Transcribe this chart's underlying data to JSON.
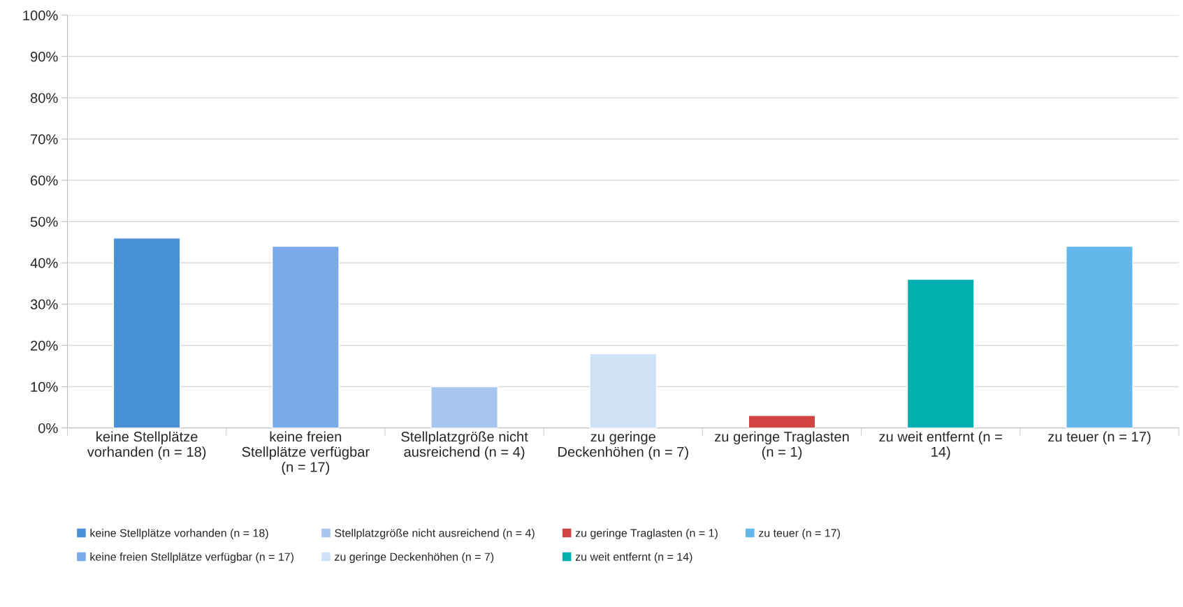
{
  "chart_data": {
    "type": "bar",
    "categories": [
      "keine Stellplätze vorhanden (n = 18)",
      "keine freien Stellplätze verfügbar (n = 17)",
      "Stellplatzgröße nicht ausreichend (n = 4)",
      "zu geringe Deckenhöhen (n = 7)",
      "zu geringe Traglasten (n = 1)",
      "zu weit entfernt (n = 14)",
      "zu teuer (n = 17)"
    ],
    "series": [
      {
        "name": "keine Stellplätze vorhanden (n = 18)",
        "color": "#4a90d9",
        "values": [
          46,
          null,
          null,
          null,
          null,
          null,
          null
        ]
      },
      {
        "name": "keine freien Stellplätze verfügbar (n = 17)",
        "color": "#7aaaea",
        "values": [
          null,
          44,
          null,
          null,
          null,
          null,
          null
        ]
      },
      {
        "name": "Stellplatzgröße nicht ausreichend (n = 4)",
        "color": "#a6c6ee",
        "values": [
          null,
          null,
          10,
          null,
          null,
          null,
          null
        ]
      },
      {
        "name": "zu geringe Deckenhöhen (n = 7)",
        "color": "#cfe1f6",
        "values": [
          null,
          null,
          null,
          18,
          null,
          null,
          null
        ]
      },
      {
        "name": "zu geringe Traglasten (n = 1)",
        "color": "#d14444",
        "values": [
          null,
          null,
          null,
          null,
          3,
          null,
          null
        ]
      },
      {
        "name": "zu weit entfernt (n = 14)",
        "color": "#00b0b0",
        "values": [
          null,
          null,
          null,
          null,
          null,
          36,
          null
        ]
      },
      {
        "name": "zu teuer (n = 17)",
        "color": "#62b8ea",
        "values": [
          null,
          null,
          null,
          null,
          null,
          null,
          44
        ]
      }
    ],
    "ylim": [
      0,
      100
    ],
    "yticks": [
      {
        "value": 0,
        "label": "0%"
      },
      {
        "value": 10,
        "label": "10%"
      },
      {
        "value": 20,
        "label": "20%"
      },
      {
        "value": 30,
        "label": "30%"
      },
      {
        "value": 40,
        "label": "40%"
      },
      {
        "value": 50,
        "label": "50%"
      },
      {
        "value": 60,
        "label": "60%"
      },
      {
        "value": 70,
        "label": "70%"
      },
      {
        "value": 80,
        "label": "80%"
      },
      {
        "value": 90,
        "label": "90%"
      },
      {
        "value": 100,
        "label": "100%"
      }
    ],
    "grid": "y",
    "legend": "bottom"
  }
}
